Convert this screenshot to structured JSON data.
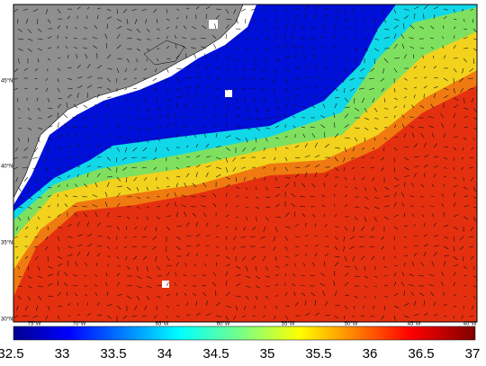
{
  "map": {
    "lon_labels": [
      "75°W",
      "70°W",
      "65°W",
      "60°W",
      "55°W",
      "50°W",
      "45°W",
      "40°W"
    ],
    "lat_labels": [
      "45°N",
      "40°N",
      "35°N",
      "30°N"
    ],
    "colorbar": {
      "labels": [
        "32.5",
        "33",
        "33.5",
        "34",
        "34.5",
        "35",
        "35.5",
        "36",
        "36.5",
        "37"
      ]
    }
  }
}
